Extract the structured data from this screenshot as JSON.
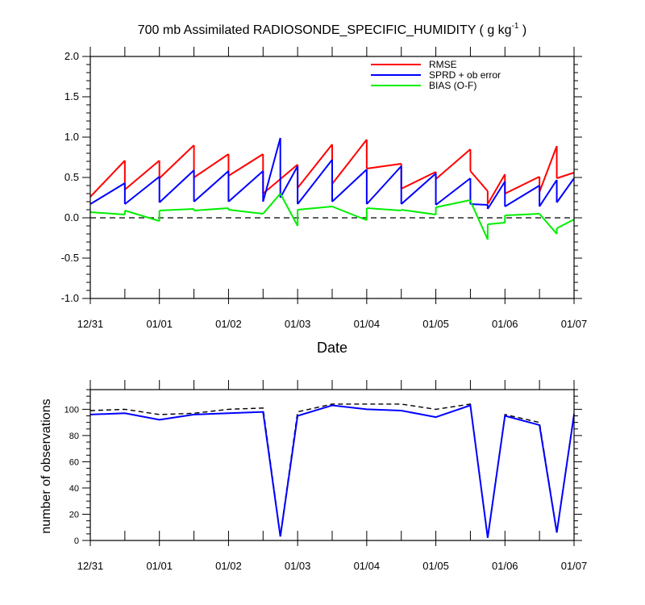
{
  "chart_data": [
    {
      "type": "line",
      "title": "700 mb Assimilated RADIOSONDE_SPECIFIC_HUMIDITY ( g kg",
      "title_sup": "-1",
      "title_tail": " )",
      "xlabel": "Date",
      "ylabel": "",
      "xlim": [
        0,
        7
      ],
      "ylim": [
        -1.0,
        2.0
      ],
      "yticks": [
        -1.0,
        -0.5,
        0.0,
        0.5,
        1.0,
        1.5,
        2.0
      ],
      "ytick_labels": [
        "-1.0",
        "-0.5",
        "0.0",
        "0.5",
        "1.0",
        "1.5",
        "2.0"
      ],
      "xticks": [
        0,
        1,
        2,
        3,
        4,
        5,
        6,
        7
      ],
      "xtick_labels": [
        "12/31",
        "01/01",
        "01/02",
        "01/03",
        "01/04",
        "01/05",
        "01/06",
        "01/07"
      ],
      "reference_line": {
        "y": 0.0,
        "style": "dashed"
      },
      "legend_position": "top-right",
      "series": [
        {
          "name": "RMSE",
          "color": "#ff0000",
          "segments": [
            [
              [
                0.0,
                0.26
              ],
              [
                0.5,
                0.71
              ]
            ],
            [
              [
                0.5,
                0.35
              ],
              [
                1.0,
                0.71
              ]
            ],
            [
              [
                1.0,
                0.49
              ],
              [
                1.5,
                0.9
              ]
            ],
            [
              [
                1.5,
                0.5
              ],
              [
                2.0,
                0.79
              ]
            ],
            [
              [
                2.0,
                0.52
              ],
              [
                2.5,
                0.79
              ]
            ],
            [
              [
                2.5,
                0.3
              ],
              [
                3.0,
                0.66
              ]
            ],
            [
              [
                3.0,
                0.37
              ],
              [
                3.5,
                0.91
              ]
            ],
            [
              [
                3.5,
                0.42
              ],
              [
                4.0,
                0.97
              ]
            ],
            [
              [
                4.0,
                0.61
              ],
              [
                4.5,
                0.67
              ]
            ],
            [
              [
                4.5,
                0.36
              ],
              [
                5.0,
                0.57
              ]
            ],
            [
              [
                5.0,
                0.48
              ],
              [
                5.5,
                0.85
              ]
            ],
            [
              [
                5.5,
                0.58
              ],
              [
                5.75,
                0.33
              ]
            ],
            [
              [
                5.75,
                0.17
              ],
              [
                6.0,
                0.54
              ]
            ],
            [
              [
                6.0,
                0.3
              ],
              [
                6.5,
                0.51
              ]
            ],
            [
              [
                6.5,
                0.32
              ],
              [
                6.75,
                0.89
              ]
            ],
            [
              [
                6.75,
                0.49
              ],
              [
                7.0,
                0.56
              ]
            ]
          ]
        },
        {
          "name": "SPRD + ob error",
          "color": "#0000ff",
          "segments": [
            [
              [
                0.0,
                0.17
              ],
              [
                0.5,
                0.43
              ]
            ],
            [
              [
                0.5,
                0.17
              ],
              [
                1.0,
                0.51
              ]
            ],
            [
              [
                1.0,
                0.19
              ],
              [
                1.5,
                0.59
              ]
            ],
            [
              [
                1.5,
                0.2
              ],
              [
                2.0,
                0.58
              ]
            ],
            [
              [
                2.0,
                0.2
              ],
              [
                2.5,
                0.58
              ]
            ],
            [
              [
                2.5,
                0.2
              ],
              [
                2.75,
                0.99
              ]
            ],
            [
              [
                2.75,
                0.25
              ],
              [
                3.0,
                0.64
              ]
            ],
            [
              [
                3.0,
                0.17
              ],
              [
                3.5,
                0.72
              ]
            ],
            [
              [
                3.5,
                0.2
              ],
              [
                4.0,
                0.6
              ]
            ],
            [
              [
                4.0,
                0.17
              ],
              [
                4.5,
                0.64
              ]
            ],
            [
              [
                4.5,
                0.17
              ],
              [
                5.0,
                0.55
              ]
            ],
            [
              [
                5.0,
                0.16
              ],
              [
                5.5,
                0.49
              ]
            ],
            [
              [
                5.5,
                0.17
              ],
              [
                5.75,
                0.16
              ]
            ],
            [
              [
                5.75,
                0.11
              ],
              [
                6.0,
                0.45
              ]
            ],
            [
              [
                6.0,
                0.14
              ],
              [
                6.5,
                0.4
              ]
            ],
            [
              [
                6.5,
                0.14
              ],
              [
                6.75,
                0.47
              ]
            ],
            [
              [
                6.75,
                0.19
              ],
              [
                7.0,
                0.49
              ]
            ]
          ]
        },
        {
          "name": "BIAS (O-F)",
          "color": "#00ee00",
          "segments": [
            [
              [
                0.0,
                0.07
              ],
              [
                0.5,
                0.04
              ]
            ],
            [
              [
                0.5,
                0.09
              ],
              [
                1.0,
                -0.04
              ]
            ],
            [
              [
                1.0,
                0.09
              ],
              [
                1.5,
                0.11
              ]
            ],
            [
              [
                1.5,
                0.09
              ],
              [
                2.0,
                0.12
              ]
            ],
            [
              [
                2.0,
                0.1
              ],
              [
                2.5,
                0.05
              ]
            ],
            [
              [
                2.5,
                0.05
              ],
              [
                2.75,
                0.3
              ]
            ],
            [
              [
                2.75,
                0.3
              ],
              [
                3.0,
                -0.1
              ]
            ],
            [
              [
                3.0,
                0.1
              ],
              [
                3.5,
                0.14
              ]
            ],
            [
              [
                3.5,
                0.14
              ],
              [
                4.0,
                -0.03
              ]
            ],
            [
              [
                4.0,
                0.12
              ],
              [
                4.5,
                0.09
              ]
            ],
            [
              [
                4.5,
                0.1
              ],
              [
                5.0,
                0.04
              ]
            ],
            [
              [
                5.0,
                0.13
              ],
              [
                5.5,
                0.22
              ]
            ],
            [
              [
                5.5,
                0.21
              ],
              [
                5.75,
                -0.27
              ]
            ],
            [
              [
                5.75,
                -0.08
              ],
              [
                6.0,
                -0.06
              ]
            ],
            [
              [
                6.0,
                0.03
              ],
              [
                6.5,
                0.05
              ]
            ],
            [
              [
                6.5,
                0.05
              ],
              [
                6.75,
                -0.2
              ]
            ],
            [
              [
                6.75,
                -0.13
              ],
              [
                7.0,
                -0.02
              ]
            ]
          ]
        }
      ]
    },
    {
      "type": "line",
      "title": "",
      "xlabel": "",
      "ylabel": "number of observations",
      "xlim": [
        0,
        7
      ],
      "ylim": [
        0,
        115
      ],
      "yticks": [
        0,
        20,
        40,
        60,
        80,
        100
      ],
      "ytick_labels": [
        "0",
        "20",
        "40",
        "60",
        "80",
        "100"
      ],
      "xticks": [
        0,
        1,
        2,
        3,
        4,
        5,
        6,
        7
      ],
      "xtick_labels": [
        "12/31",
        "01/01",
        "01/02",
        "01/03",
        "01/04",
        "01/05",
        "01/06",
        "01/07"
      ],
      "series": [
        {
          "style": "dashed",
          "color": "#000000",
          "points": [
            [
              0.0,
              99
            ],
            [
              0.5,
              100
            ],
            [
              1.0,
              96
            ],
            [
              1.5,
              97
            ],
            [
              2.0,
              100
            ],
            [
              2.5,
              101
            ],
            [
              2.75,
              4
            ],
            [
              3.0,
              98
            ],
            [
              3.5,
              104
            ],
            [
              4.0,
              104
            ],
            [
              4.5,
              104
            ],
            [
              5.0,
              100
            ],
            [
              5.5,
              104
            ],
            [
              5.75,
              3
            ],
            [
              6.0,
              96
            ],
            [
              6.5,
              90
            ],
            [
              6.75,
              7
            ],
            [
              7.0,
              97
            ]
          ]
        },
        {
          "style": "solid",
          "color": "#0000ff",
          "points": [
            [
              0.0,
              96
            ],
            [
              0.5,
              97
            ],
            [
              1.0,
              92
            ],
            [
              1.5,
              96
            ],
            [
              2.0,
              97
            ],
            [
              2.5,
              98
            ],
            [
              2.75,
              3
            ],
            [
              3.0,
              95
            ],
            [
              3.5,
              103
            ],
            [
              4.0,
              100
            ],
            [
              4.5,
              99
            ],
            [
              5.0,
              94
            ],
            [
              5.5,
              103
            ],
            [
              5.75,
              2
            ],
            [
              6.0,
              95
            ],
            [
              6.5,
              88
            ],
            [
              6.75,
              6
            ],
            [
              7.0,
              96
            ]
          ]
        }
      ]
    }
  ]
}
